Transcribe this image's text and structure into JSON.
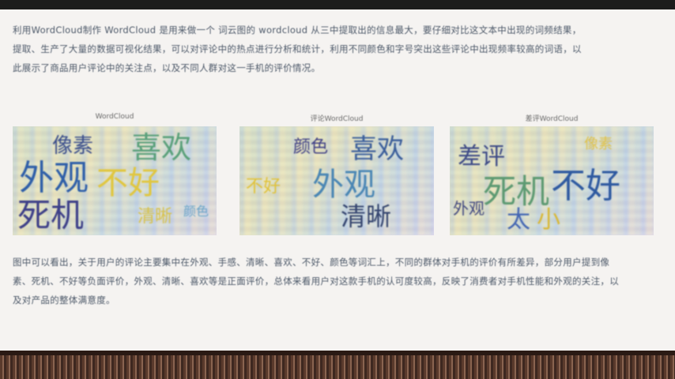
{
  "para1": "利用WordCloud制作 WordCloud 是用来做一个 词云图的 wordcloud 从三中提取出的信息最大，要仔细对比这文本中出现的词频结果，提取、生产了大量的数据可视化结果，可以对评论中的热点进行分析和统计，利用不同颜色和字号突出这些评论中出现频率较高的词语，以此展示了商品用户评论中的关注点，以及不同人群对这一手机的评价情况。",
  "para2": "图中可以看出，关于用户的评论主要集中在外观、手感、清晰、喜欢、不好、颜色等词汇上，不同的群体对手机的评价有所差异，部分用户提到像素、死机、不好等负面评价，外观、清晰、喜欢等是正面评价，总体来看用户对这款手机的认可度较高，反映了消费者对手机性能和外观的关注，以及对产品的整体满意度。",
  "cloud_titles": [
    "WordCloud",
    "评论WordCloud",
    "差评WordCloud"
  ],
  "cloud1": [
    "像素",
    "喜欢",
    "外观",
    "不好",
    "死机",
    "清晰",
    "颜色"
  ],
  "cloud2": [
    "颜色",
    "喜欢",
    "外观",
    "清晰",
    "不好"
  ],
  "cloud3": [
    "差评",
    "死机",
    "不好",
    "太",
    "小",
    "像素",
    "外观"
  ]
}
